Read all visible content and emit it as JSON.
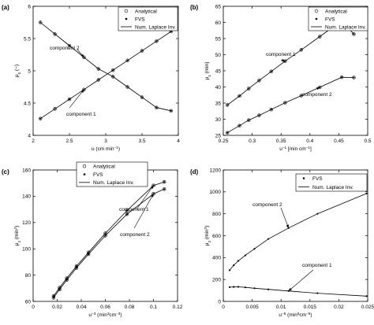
{
  "chart_data": [
    {
      "panel_label": "(a)",
      "type": "line",
      "xlabel": "u (cm min",
      "xlabel_sup": "−1",
      "xlabel_end": ")",
      "ylabel": "μ",
      "ylabel_sub": "0",
      "ylabel_end": " (−)",
      "xlim": [
        2,
        4
      ],
      "ylim": [
        4,
        6
      ],
      "xticks": [
        "2",
        "2.5",
        "3",
        "3.5",
        "4"
      ],
      "yticks": [
        "4",
        "4.5",
        "5",
        "5.5",
        "6"
      ],
      "legend": [
        "Analytical",
        "FVS",
        "Num. Laplace Inv."
      ],
      "series": [
        {
          "name": "component 1",
          "x": [
            2.1,
            2.3,
            2.5,
            2.7,
            2.9,
            3.1,
            3.3,
            3.5,
            3.7,
            3.9
          ],
          "y": [
            4.26,
            4.41,
            4.56,
            4.71,
            4.86,
            5.01,
            5.16,
            5.31,
            5.46,
            5.61
          ]
        },
        {
          "name": "component 2",
          "x": [
            2.1,
            2.3,
            2.5,
            2.7,
            2.9,
            3.1,
            3.3,
            3.5,
            3.7,
            3.9
          ],
          "y": [
            5.75,
            5.57,
            5.39,
            5.21,
            5.03,
            4.91,
            4.75,
            4.59,
            4.43,
            4.38
          ]
        }
      ],
      "annotations": [
        "component 2",
        "component 1"
      ]
    },
    {
      "panel_label": "(b)",
      "type": "line",
      "xlabel": "u",
      "xlabel_sup": "−1",
      "xlabel_end": " [min cm",
      "xlabel_sup2": "−1",
      "xlabel_end2": "]",
      "ylabel": "μ",
      "ylabel_sub": "1",
      "ylabel_end": " (min)",
      "xlim": [
        0.25,
        0.5
      ],
      "ylim": [
        25,
        65
      ],
      "xticks": [
        "0.25",
        "0.3",
        "0.35",
        "0.4",
        "0.45",
        "0.5"
      ],
      "yticks": [
        "25",
        "30",
        "35",
        "40",
        "45",
        "50",
        "55",
        "60",
        "65"
      ],
      "legend": [
        "Analytical",
        "FVS",
        "Num. Laplace Inv."
      ],
      "series": [
        {
          "name": "component 1",
          "x": [
            0.257,
            0.278,
            0.294,
            0.312,
            0.333,
            0.357,
            0.385,
            0.417,
            0.455,
            0.476
          ],
          "y": [
            34.4,
            37.2,
            39.5,
            42.0,
            44.8,
            48.0,
            51.5,
            55.6,
            60.5,
            56.4
          ]
        },
        {
          "name": "component 2",
          "x": [
            0.257,
            0.278,
            0.294,
            0.312,
            0.333,
            0.357,
            0.385,
            0.417,
            0.455,
            0.476
          ],
          "y": [
            25.8,
            28.0,
            29.7,
            31.2,
            33.0,
            35.1,
            37.3,
            39.9,
            43.0,
            42.9
          ]
        }
      ],
      "annotations": [
        "component 1",
        "component 2"
      ]
    },
    {
      "panel_label": "(c)",
      "type": "line",
      "xlabel": "u",
      "xlabel_sup": "−3",
      "xlabel_end": " (min",
      "xlabel_sup2": "3",
      "xlabel_end2": "cm",
      "xlabel_sup3": "−3",
      "xlabel_end3": ")",
      "ylabel": "μ",
      "ylabel_sub": "2",
      "ylabel_end": " (min",
      "ylabel_sup": "2",
      "ylabel_end2": ")",
      "xlim": [
        0,
        0.12
      ],
      "ylim": [
        60,
        170
      ],
      "xticks": [
        "0",
        "0.02",
        "0.04",
        "0.06",
        "0.08",
        "0.1",
        "0.12"
      ],
      "yticks": [
        "60",
        "80",
        "100",
        "120",
        "140",
        "160"
      ],
      "legend": [
        "Analytical",
        "FVS",
        "Num. Laplace Inv."
      ],
      "series": [
        {
          "name": "component 1",
          "x": [
            0.017,
            0.022,
            0.028,
            0.036,
            0.046,
            0.06,
            0.078,
            0.1,
            0.109
          ],
          "y": [
            64.5,
            71.5,
            79.5,
            89.5,
            101,
            117,
            136,
            157,
            160
          ]
        },
        {
          "name": "component 2",
          "x": [
            0.017,
            0.022,
            0.028,
            0.036,
            0.046,
            0.06,
            0.078,
            0.1,
            0.109
          ],
          "y": [
            63,
            70,
            78,
            88,
            99.5,
            115,
            133,
            150,
            154
          ]
        }
      ],
      "annotations": [
        "component 1",
        "component 2"
      ]
    },
    {
      "panel_label": "(d)",
      "type": "line",
      "xlabel": "u",
      "xlabel_sup": "−5",
      "xlabel_end": " (min",
      "xlabel_sup2": "5",
      "xlabel_end2": "cm",
      "xlabel_sup3": "−5",
      "xlabel_end3": ")",
      "ylabel": "μ",
      "ylabel_sub": "3",
      "ylabel_end": " (min",
      "ylabel_sup": "3",
      "ylabel_end2": ")",
      "xlim": [
        0,
        0.025
      ],
      "ylim": [
        0,
        1200
      ],
      "xticks": [
        "0",
        "0.005",
        "0.01",
        "0.015",
        "0.02",
        "0.025"
      ],
      "yticks": [
        "0",
        "200",
        "400",
        "600",
        "800",
        "1000",
        "1200"
      ],
      "legend": [
        "FVS",
        "Num. Laplace Inv."
      ],
      "series": [
        {
          "name": "component 2",
          "x": [
            0.0011,
            0.0018,
            0.0026,
            0.0038,
            0.0054,
            0.0078,
            0.0113,
            0.0163,
            0.0248
          ],
          "y": [
            285,
            330,
            370,
            420,
            480,
            570,
            670,
            800,
            985
          ]
        },
        {
          "name": "component 1",
          "x": [
            0.0011,
            0.0018,
            0.0026,
            0.0038,
            0.0054,
            0.0078,
            0.0113,
            0.0163,
            0.0248
          ],
          "y": [
            130,
            132,
            133,
            128,
            120,
            110,
            95,
            75,
            48
          ]
        }
      ],
      "annotations": [
        "component 2",
        "component 1"
      ]
    }
  ]
}
